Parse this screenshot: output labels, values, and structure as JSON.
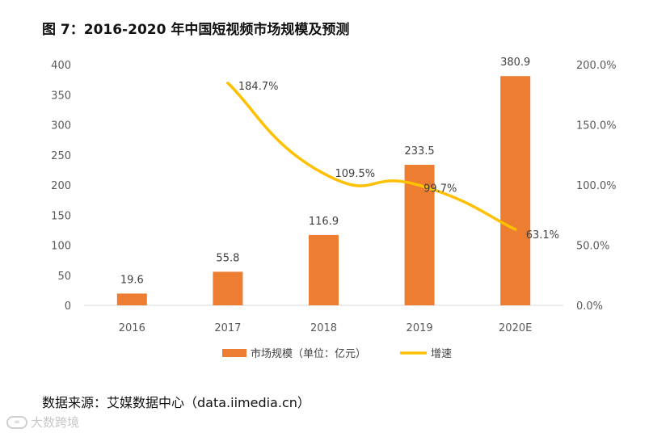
{
  "figure": {
    "title": "图 7：2016-2020 年中国短视频市场规模及预测",
    "source": "数据来源：艾媒数据中心（data.iimedia.cn）",
    "watermark": "大数跨境"
  },
  "chart_data": {
    "type": "bar",
    "categories": [
      "2016",
      "2017",
      "2018",
      "2019",
      "2020E"
    ],
    "series": [
      {
        "name": "市场规模（单位：亿元）",
        "type": "bar",
        "axis": "left",
        "color": "#ED7D31",
        "values": [
          19.6,
          55.8,
          116.9,
          233.5,
          380.9
        ],
        "labels": [
          "19.6",
          "55.8",
          "116.9",
          "233.5",
          "380.9"
        ]
      },
      {
        "name": "增速",
        "type": "line",
        "axis": "right",
        "color": "#FFC000",
        "values": [
          null,
          184.7,
          109.5,
          99.7,
          63.1
        ],
        "labels": [
          "",
          "184.7%",
          "109.5%",
          "99.7%",
          "63.1%"
        ]
      }
    ],
    "y_left": {
      "min": 0,
      "max": 400,
      "ticks": [
        "0",
        "50",
        "100",
        "150",
        "200",
        "250",
        "300",
        "350",
        "400"
      ]
    },
    "y_right": {
      "min": 0,
      "max": 200,
      "ticks": [
        "0.0%",
        "50.0%",
        "100.0%",
        "150.0%",
        "200.0%"
      ]
    },
    "xlabel": "",
    "ylabel": "",
    "grid": false,
    "legend": "bottom"
  }
}
